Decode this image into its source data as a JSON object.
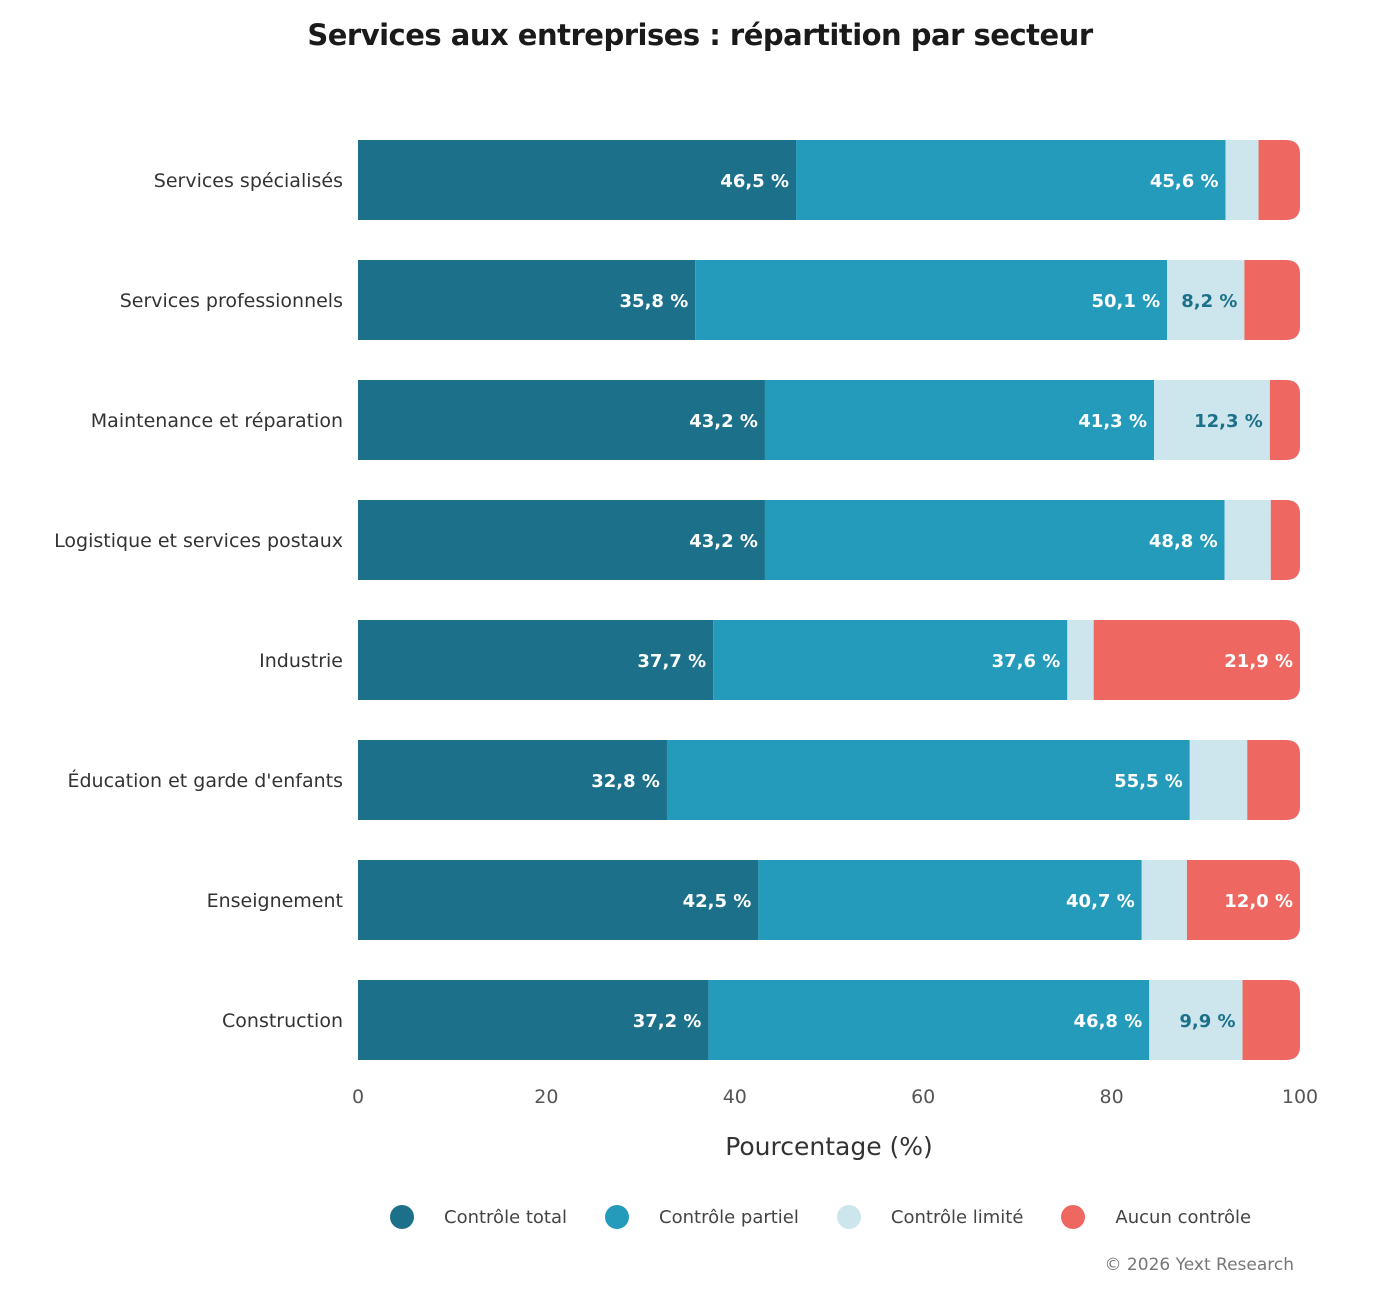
{
  "chart_data": {
    "type": "bar",
    "orientation": "horizontal",
    "stacked": true,
    "title": "Services aux entreprises : répartition par secteur",
    "xlabel": "Pourcentage (%)",
    "ylabel": "",
    "xlim": [
      0,
      100
    ],
    "xticks": [
      "0",
      "20",
      "40",
      "60",
      "80",
      "100"
    ],
    "categories": [
      "Services spécialisés",
      "Services professionnels",
      "Maintenance et réparation",
      "Logistique et services postaux",
      "Industrie",
      "Éducation et garde d'enfants",
      "Enseignement",
      "Construction"
    ],
    "series": [
      {
        "name": "Contrôle total",
        "color": "#1c7089",
        "values": [
          46.5,
          35.8,
          43.2,
          43.2,
          37.7,
          32.8,
          42.5,
          37.2
        ]
      },
      {
        "name": "Contrôle partiel",
        "color": "#259bbb",
        "values": [
          45.6,
          50.1,
          41.3,
          48.8,
          37.6,
          55.5,
          40.7,
          46.8
        ]
      },
      {
        "name": "Contrôle limité",
        "color": "#cde5ec",
        "values": [
          3.5,
          8.2,
          12.3,
          4.9,
          2.8,
          6.1,
          4.8,
          9.9
        ]
      },
      {
        "name": "Aucun contrôle",
        "color": "#ee6760",
        "values": [
          4.4,
          5.9,
          3.2,
          3.1,
          21.9,
          5.6,
          12.0,
          6.1
        ]
      }
    ],
    "legend_position": "bottom",
    "grid": false
  },
  "credit": "© 2026 Yext Research"
}
